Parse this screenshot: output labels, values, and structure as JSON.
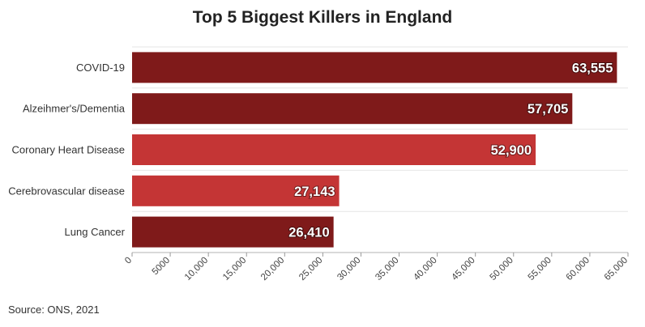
{
  "chart_data": {
    "type": "bar",
    "orientation": "horizontal",
    "title": "Top 5 Biggest Killers in England",
    "categories": [
      "COVID-19",
      "Alzeihmer's/Dementia",
      "Coronary Heart Disease",
      "Cerebrovascular disease",
      "Lung Cancer"
    ],
    "values": [
      63555,
      57705,
      52900,
      27143,
      26410
    ],
    "value_labels": [
      "63,555",
      "57,705",
      "52,900",
      "27,143",
      "26,410"
    ],
    "bar_colors": [
      "#7f1a1a",
      "#7f1a1a",
      "#c43535",
      "#c43535",
      "#7f1a1a"
    ],
    "xlim": [
      0,
      65000
    ],
    "x_ticks": [
      0,
      5000,
      10000,
      15000,
      20000,
      25000,
      30000,
      35000,
      40000,
      45000,
      50000,
      55000,
      60000,
      65000
    ],
    "x_tick_labels": [
      "0",
      "5000",
      "10,000",
      "15,000",
      "20,000",
      "25,000",
      "30,000",
      "35,000",
      "40,000",
      "45,000",
      "50,000",
      "55,000",
      "60,000",
      "65,000"
    ],
    "xlabel": "",
    "ylabel": "",
    "grid": true,
    "source": "Source: ONS, 2021"
  }
}
